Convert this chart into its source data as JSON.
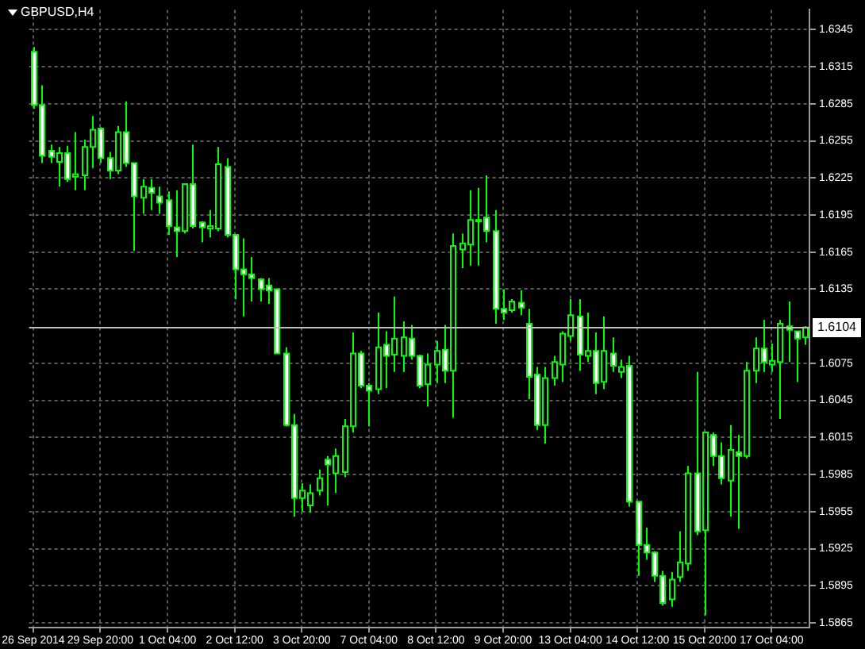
{
  "chart_data": {
    "type": "candlestick",
    "title": "GBPUSD,H4",
    "color": "#00ff00",
    "categories": [
      "26 Sep 2014",
      null,
      null,
      null,
      null,
      null,
      null,
      null,
      "29 Sep 20:00",
      null,
      null,
      null,
      null,
      null,
      null,
      null,
      "1 Oct 04:00",
      null,
      null,
      null,
      null,
      null,
      null,
      null,
      "2 Oct 12:00",
      null,
      null,
      null,
      null,
      null,
      null,
      null,
      "3 Oct 20:00",
      null,
      null,
      null,
      null,
      null,
      null,
      null,
      "7 Oct 04:00",
      null,
      null,
      null,
      null,
      null,
      null,
      null,
      "8 Oct 12:00",
      null,
      null,
      null,
      null,
      null,
      null,
      null,
      "9 Oct 20:00",
      null,
      null,
      null,
      null,
      null,
      null,
      null,
      "13 Oct 04:00",
      null,
      null,
      null,
      null,
      null,
      null,
      null,
      "14 Oct 12:00",
      null,
      null,
      null,
      null,
      null,
      null,
      null,
      "15 Oct 20:00",
      null,
      null,
      null,
      null,
      null,
      null,
      null,
      "17 Oct 04:00",
      null,
      null,
      null,
      null
    ],
    "ohlc": [
      [
        1.6327,
        1.6331,
        1.6281,
        1.6284
      ],
      [
        1.6284,
        1.63,
        1.6237,
        1.6243
      ],
      [
        1.6247,
        1.6252,
        1.6237,
        1.6242
      ],
      [
        1.6238,
        1.625,
        1.6218,
        1.6245
      ],
      [
        1.6245,
        1.6251,
        1.6222,
        1.6224
      ],
      [
        1.6226,
        1.6262,
        1.6215,
        1.6228
      ],
      [
        1.6227,
        1.6256,
        1.6215,
        1.625
      ],
      [
        1.625,
        1.6275,
        1.6233,
        1.6264
      ],
      [
        1.6265,
        1.6266,
        1.6237,
        1.6241
      ],
      [
        1.6241,
        1.6246,
        1.6224,
        1.6231
      ],
      [
        1.6231,
        1.6267,
        1.6228,
        1.6262
      ],
      [
        1.6262,
        1.6287,
        1.6234,
        1.6237
      ],
      [
        1.6237,
        1.6237,
        1.6166,
        1.621
      ],
      [
        1.6209,
        1.6224,
        1.6196,
        1.6218
      ],
      [
        1.6217,
        1.6224,
        1.6199,
        1.6213
      ],
      [
        1.621,
        1.6218,
        1.6196,
        1.6205
      ],
      [
        1.6207,
        1.6214,
        1.6179,
        1.6186
      ],
      [
        1.6185,
        1.6215,
        1.6161,
        1.6182
      ],
      [
        1.6182,
        1.622,
        1.618,
        1.622
      ],
      [
        1.622,
        1.6252,
        1.6184,
        1.6186
      ],
      [
        1.6189,
        1.619,
        1.6173,
        1.6185
      ],
      [
        1.6184,
        1.6199,
        1.6177,
        1.6186
      ],
      [
        1.6184,
        1.625,
        1.6182,
        1.6236
      ],
      [
        1.6234,
        1.6241,
        1.6177,
        1.6179
      ],
      [
        1.6179,
        1.6179,
        1.6127,
        1.6151
      ],
      [
        1.6151,
        1.6176,
        1.6113,
        1.6147
      ],
      [
        1.6147,
        1.6161,
        1.6125,
        1.6144
      ],
      [
        1.6143,
        1.6144,
        1.6125,
        1.6135
      ],
      [
        1.6138,
        1.6144,
        1.6123,
        1.6134
      ],
      [
        1.6135,
        1.6135,
        1.6083,
        1.6083
      ],
      [
        1.6083,
        1.6088,
        1.6024,
        1.6025
      ],
      [
        1.6025,
        1.6034,
        1.5951,
        1.5966
      ],
      [
        1.5966,
        1.5978,
        1.5955,
        1.5972
      ],
      [
        1.596,
        1.5977,
        1.5954,
        1.597
      ],
      [
        1.5972,
        1.5989,
        1.5968,
        1.5982
      ],
      [
        1.5997,
        1.6,
        1.596,
        1.5993
      ],
      [
        1.5986,
        1.6006,
        1.597,
        1.6
      ],
      [
        1.5987,
        1.603,
        1.5983,
        1.6024
      ],
      [
        1.6024,
        1.61,
        1.6019,
        1.6083
      ],
      [
        1.6083,
        1.6085,
        1.6055,
        1.6057
      ],
      [
        1.6057,
        1.6059,
        1.6024,
        1.6053
      ],
      [
        1.6054,
        1.6116,
        1.605,
        1.6088
      ],
      [
        1.609,
        1.6101,
        1.6055,
        1.6081
      ],
      [
        1.6082,
        1.6129,
        1.6068,
        1.6095
      ],
      [
        1.6081,
        1.6109,
        1.6068,
        1.6096
      ],
      [
        1.6095,
        1.6106,
        1.6078,
        1.6081
      ],
      [
        1.6081,
        1.6082,
        1.6055,
        1.6057
      ],
      [
        1.6058,
        1.6083,
        1.604,
        1.6074
      ],
      [
        1.6074,
        1.6093,
        1.6059,
        1.6085
      ],
      [
        1.6086,
        1.6106,
        1.6059,
        1.6069
      ],
      [
        1.6069,
        1.618,
        1.6031,
        1.617
      ],
      [
        1.6167,
        1.618,
        1.6152,
        1.6172
      ],
      [
        1.6171,
        1.6215,
        1.6154,
        1.6191
      ],
      [
        1.6191,
        1.6217,
        1.6154,
        1.619
      ],
      [
        1.6193,
        1.6227,
        1.6173,
        1.6182
      ],
      [
        1.6182,
        1.6199,
        1.6107,
        1.6119
      ],
      [
        1.6119,
        1.6135,
        1.611,
        1.6116
      ],
      [
        1.6118,
        1.6127,
        1.6116,
        1.6125
      ],
      [
        1.6124,
        1.6134,
        1.6114,
        1.612
      ],
      [
        1.6107,
        1.6119,
        1.6046,
        1.6064
      ],
      [
        1.6066,
        1.6072,
        1.6021,
        1.6025
      ],
      [
        1.6025,
        1.6072,
        1.601,
        1.6063
      ],
      [
        1.6063,
        1.6081,
        1.6057,
        1.6076
      ],
      [
        1.6074,
        1.6101,
        1.606,
        1.6099
      ],
      [
        1.6097,
        1.6127,
        1.6093,
        1.6114
      ],
      [
        1.6113,
        1.6127,
        1.6069,
        1.6082
      ],
      [
        1.6081,
        1.6116,
        1.6076,
        1.6085
      ],
      [
        1.6085,
        1.61,
        1.605,
        1.6059
      ],
      [
        1.606,
        1.6113,
        1.6054,
        1.6085
      ],
      [
        1.6083,
        1.6096,
        1.6068,
        1.6073
      ],
      [
        1.6068,
        1.6078,
        1.6063,
        1.6072
      ],
      [
        1.6073,
        1.6081,
        1.5959,
        1.5963
      ],
      [
        1.5963,
        1.5963,
        1.5903,
        1.5928
      ],
      [
        1.5928,
        1.5942,
        1.5916,
        1.5922
      ],
      [
        1.5922,
        1.5923,
        1.5898,
        1.5903
      ],
      [
        1.5903,
        1.5907,
        1.5879,
        1.5881
      ],
      [
        1.5884,
        1.5906,
        1.5878,
        1.59
      ],
      [
        1.5902,
        1.5939,
        1.5898,
        1.5914
      ],
      [
        1.5913,
        1.5992,
        1.5907,
        1.5986
      ],
      [
        1.5986,
        1.6068,
        1.5936,
        1.5939
      ],
      [
        1.594,
        1.6019,
        1.5871,
        1.6019
      ],
      [
        1.6017,
        1.6019,
        1.5992,
        1.6
      ],
      [
        1.6,
        1.6011,
        1.5977,
        1.5982
      ],
      [
        1.598,
        1.6025,
        1.5951,
        1.6005
      ],
      [
        1.6003,
        1.6017,
        1.5941,
        1.6
      ],
      [
        1.6,
        1.6076,
        1.5998,
        1.6069
      ],
      [
        1.6069,
        1.6096,
        1.6059,
        1.6087
      ],
      [
        1.6087,
        1.611,
        1.6068,
        1.6076
      ],
      [
        1.6074,
        1.6091,
        1.6068,
        1.6077
      ],
      [
        1.6076,
        1.611,
        1.603,
        1.6107
      ],
      [
        1.6105,
        1.6125,
        1.6076,
        1.6102
      ],
      [
        1.6101,
        1.6101,
        1.606,
        1.6095
      ],
      [
        1.6096,
        1.6105,
        1.609,
        1.6104
      ]
    ],
    "colors": [
      "#ffffff",
      "#ffffff",
      "#ffffff",
      "#000000",
      "#ffffff",
      "#000000",
      "#000000",
      "#000000",
      "#ffffff",
      "#ffffff",
      "#000000",
      "#ffffff",
      "#ffffff",
      "#000000",
      "#ffffff",
      "#ffffff",
      "#ffffff",
      "#ffffff",
      "#000000",
      "#ffffff",
      "#ffffff",
      "#000000",
      "#000000",
      "#ffffff",
      "#ffffff",
      "#ffffff",
      "#ffffff",
      "#ffffff",
      "#ffffff",
      "#ffffff",
      "#ffffff",
      "#ffffff",
      "#000000",
      "#000000",
      "#000000",
      "#ffffff",
      "#000000",
      "#000000",
      "#000000",
      "#ffffff",
      "#ffffff",
      "#000000",
      "#ffffff",
      "#000000",
      "#000000",
      "#ffffff",
      "#ffffff",
      "#000000",
      "#000000",
      "#ffffff",
      "#000000",
      "#000000",
      "#000000",
      "#ffffff",
      "#ffffff",
      "#ffffff",
      "#ffffff",
      "#000000",
      "#ffffff",
      "#ffffff",
      "#ffffff",
      "#000000",
      "#000000",
      "#000000",
      "#000000",
      "#ffffff",
      "#000000",
      "#ffffff",
      "#000000",
      "#ffffff",
      "#000000",
      "#ffffff",
      "#ffffff",
      "#ffffff",
      "#ffffff",
      "#ffffff",
      "#000000",
      "#000000",
      "#000000",
      "#ffffff",
      "#000000",
      "#ffffff",
      "#ffffff",
      "#000000",
      "#ffffff",
      "#000000",
      "#000000",
      "#ffffff",
      "#000000",
      "#000000",
      "#ffffff",
      "#ffffff",
      "#000000"
    ],
    "ylim": [
      1.5861,
      1.6361
    ],
    "yticks": [
      1.6345,
      1.6315,
      1.6285,
      1.6255,
      1.6225,
      1.6195,
      1.6165,
      1.6135,
      1.6075,
      1.6045,
      1.6015,
      1.5985,
      1.5955,
      1.5925,
      1.5895,
      1.5865
    ],
    "grid": true,
    "legend": false,
    "ref_lines": [
      {
        "axis": "y",
        "value": 1.6104,
        "label": "1.6104",
        "color": "#c0c0c0"
      }
    ]
  }
}
